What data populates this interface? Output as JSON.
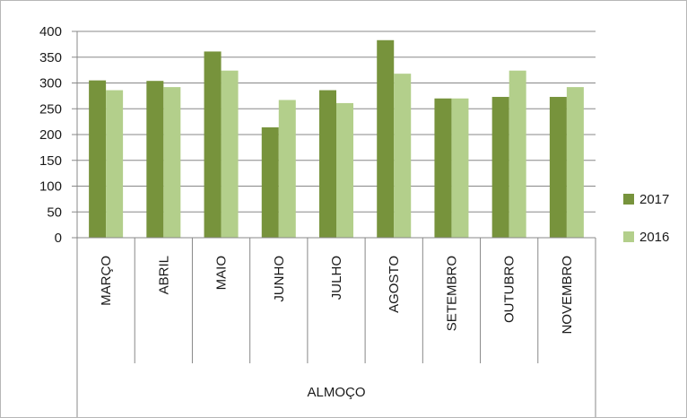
{
  "chart_data": {
    "type": "bar",
    "title": "",
    "xlabel": "",
    "ylabel": "",
    "group_label": "ALMOÇO",
    "categories": [
      "MARÇO",
      "ABRIL",
      "MAIO",
      "JUNHO",
      "JULHO",
      "AGOSTO",
      "SETEMBRO",
      "OUTUBRO",
      "NOVEMBRO"
    ],
    "series": [
      {
        "name": "2017",
        "color": "#77933c",
        "values": [
          305,
          304,
          361,
          214,
          286,
          383,
          270,
          273,
          273
        ]
      },
      {
        "name": "2016",
        "color": "#b3cf8b",
        "values": [
          286,
          292,
          324,
          267,
          261,
          318,
          270,
          324,
          292
        ]
      }
    ],
    "ylim": [
      0,
      400
    ],
    "yticks": [
      0,
      50,
      100,
      150,
      200,
      250,
      300,
      350,
      400
    ],
    "grid": true,
    "legend": "right"
  }
}
